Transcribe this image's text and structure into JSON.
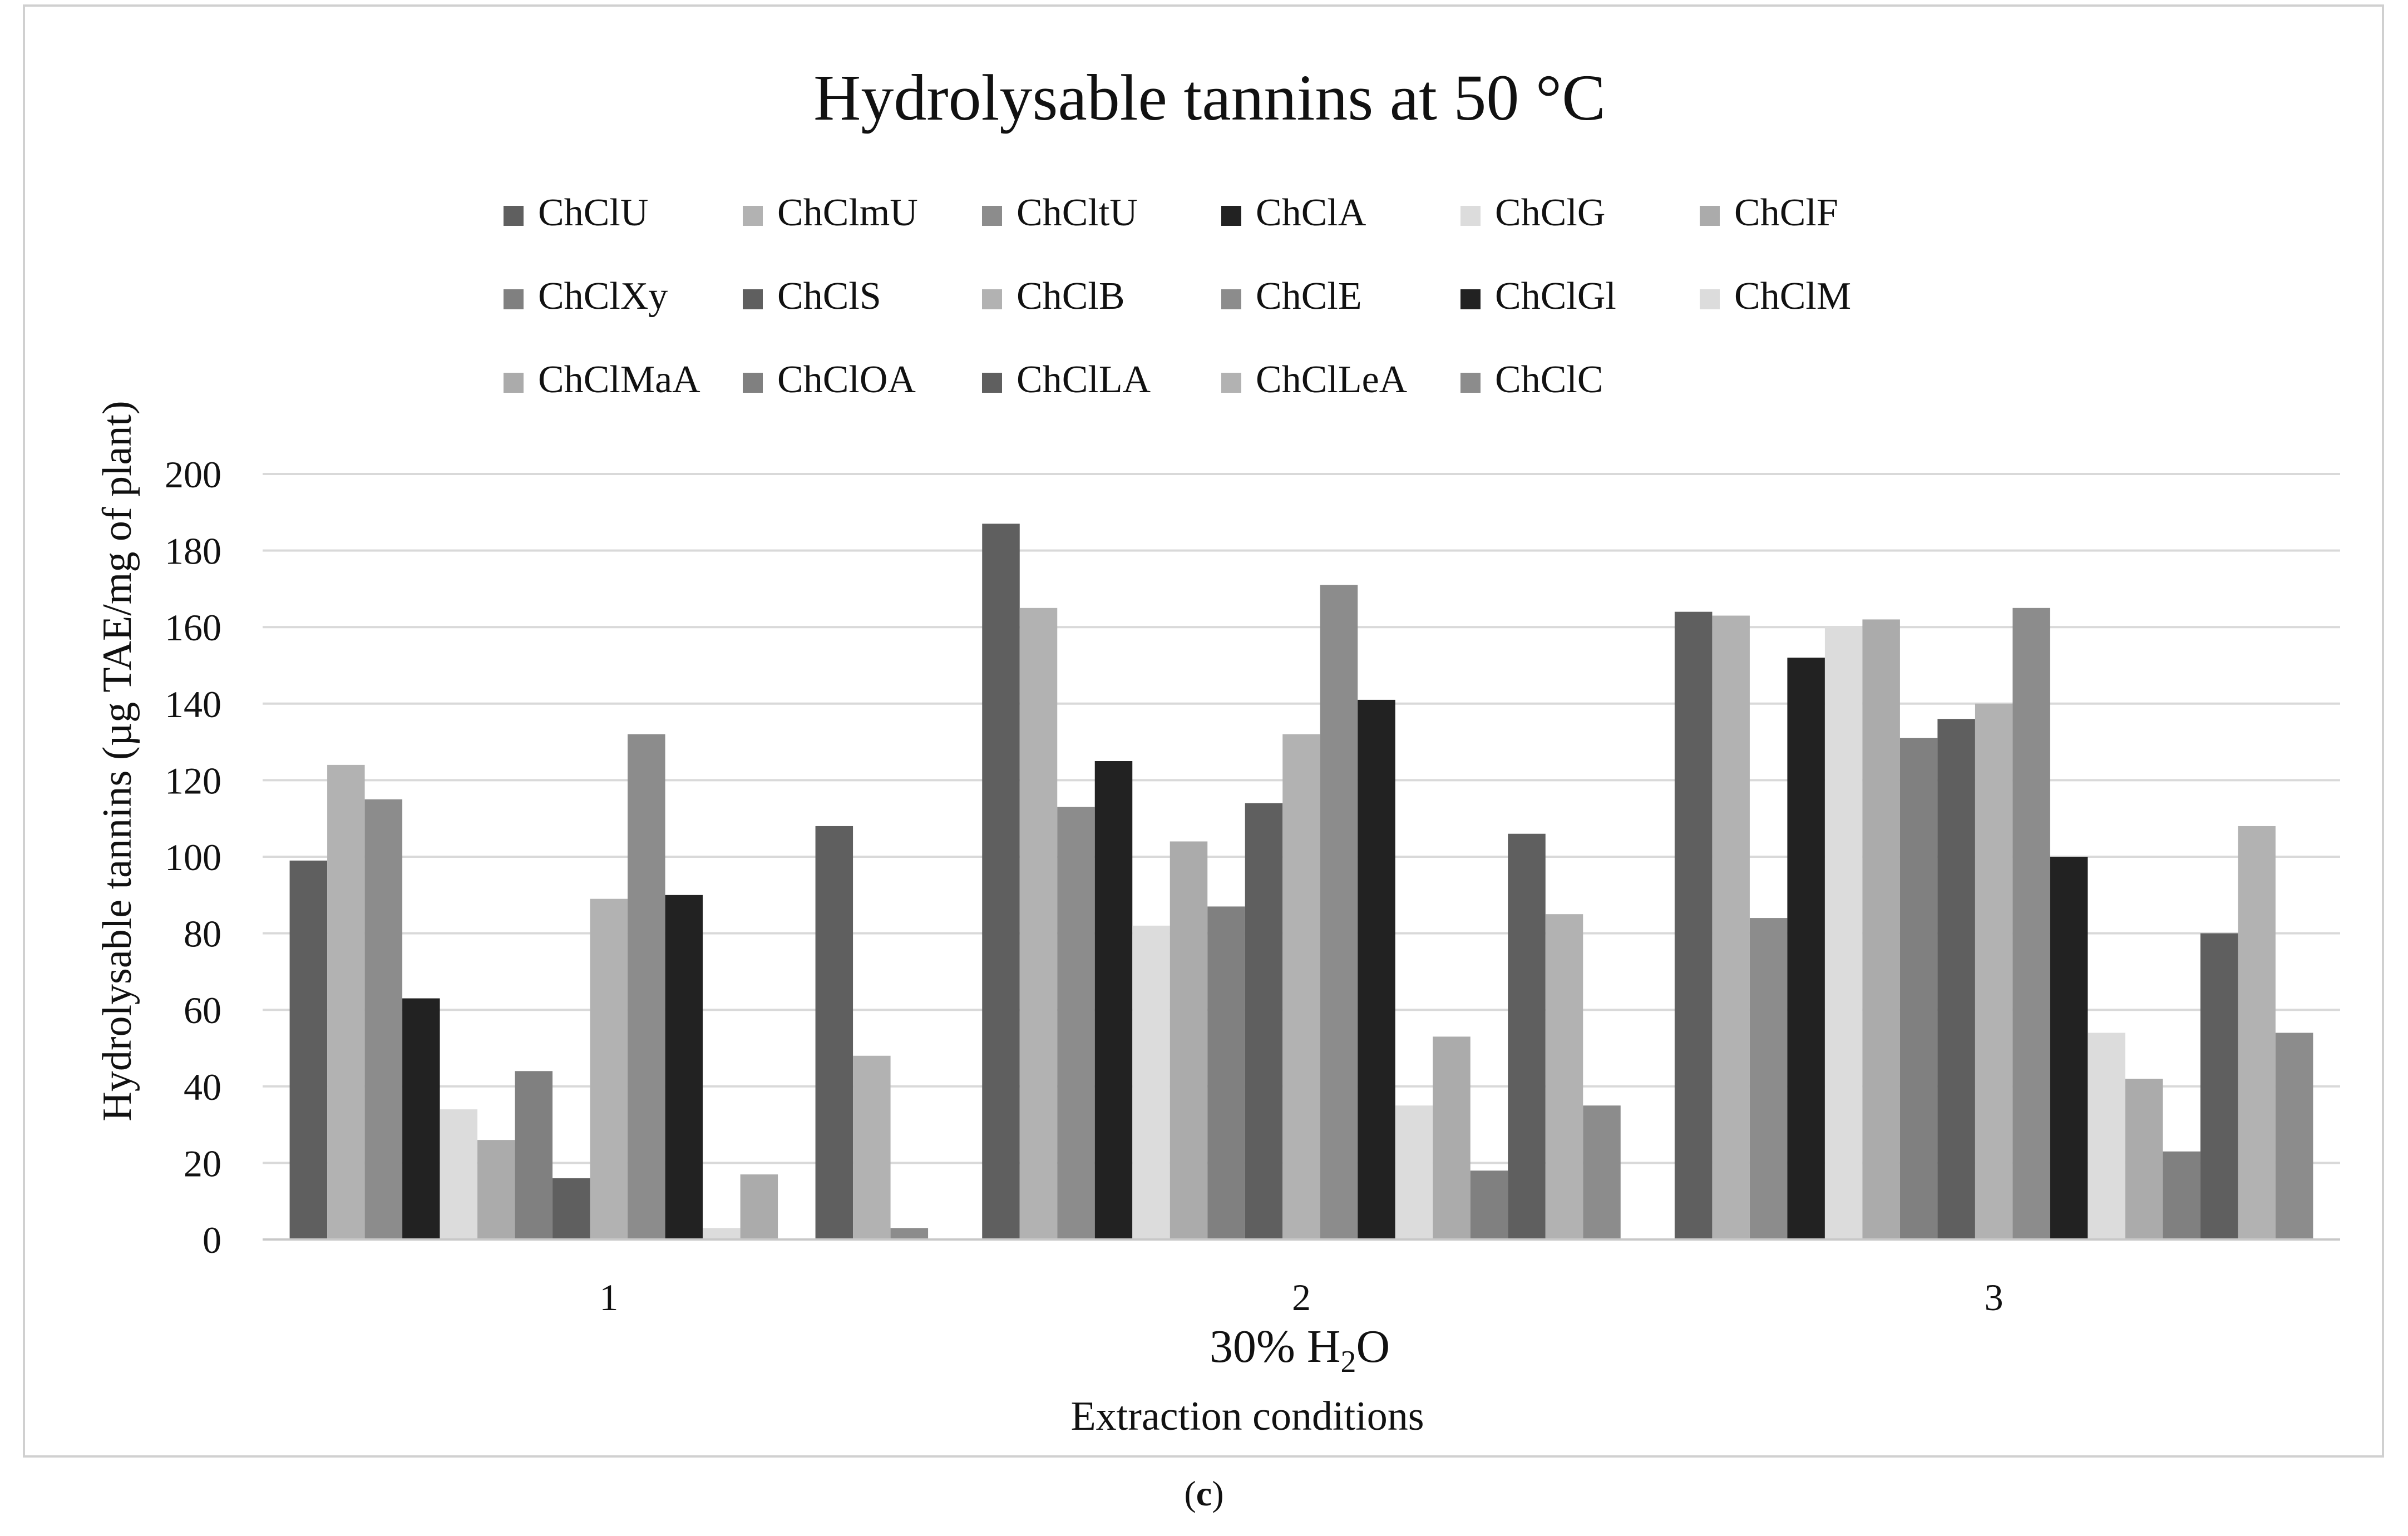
{
  "chart_data": {
    "type": "bar",
    "title": "Hydrolysable tannins at 50 °C",
    "ylabel": "Hydrolysable tannins (µg TAE/mg of plant)",
    "xlabel_line1_prefix": "30% H",
    "xlabel_line1_sub": "2",
    "xlabel_line1_suffix": "O",
    "xlabel": "Extraction conditions",
    "ylim": [
      0,
      200
    ],
    "yticks": [
      0,
      20,
      40,
      60,
      80,
      100,
      120,
      140,
      160,
      180,
      200
    ],
    "grid": true,
    "legend_position": "top",
    "categories": [
      "1",
      "2",
      "3"
    ],
    "series": [
      {
        "name": "ChClU",
        "color": "#5f5f5f",
        "values": [
          99,
          187,
          164
        ]
      },
      {
        "name": "ChClmU",
        "color": "#b2b2b2",
        "values": [
          124,
          165,
          163
        ]
      },
      {
        "name": "ChCltU",
        "color": "#8c8c8c",
        "values": [
          115,
          113,
          84
        ]
      },
      {
        "name": "ChClA",
        "color": "#222222",
        "values": [
          63,
          125,
          152
        ]
      },
      {
        "name": "ChClG",
        "color": "#dcdcdc",
        "values": [
          34,
          82,
          160
        ]
      },
      {
        "name": "ChClF",
        "color": "#ababab",
        "values": [
          26,
          104,
          162
        ]
      },
      {
        "name": "ChClXy",
        "color": "#808080",
        "values": [
          44,
          87,
          131
        ]
      },
      {
        "name": "ChClS",
        "color": "#5f5f5f",
        "values": [
          16,
          114,
          136
        ]
      },
      {
        "name": "ChClB",
        "color": "#b2b2b2",
        "values": [
          89,
          132,
          140
        ]
      },
      {
        "name": "ChClE",
        "color": "#8c8c8c",
        "values": [
          132,
          171,
          165
        ]
      },
      {
        "name": "ChClGl",
        "color": "#222222",
        "values": [
          90,
          141,
          100
        ]
      },
      {
        "name": "ChClM",
        "color": "#dcdcdc",
        "values": [
          3,
          35,
          54
        ]
      },
      {
        "name": "ChClMaA",
        "color": "#ababab",
        "values": [
          17,
          53,
          42
        ]
      },
      {
        "name": "ChClOA",
        "color": "#808080",
        "values": [
          0,
          18,
          23
        ]
      },
      {
        "name": "ChClLA",
        "color": "#5f5f5f",
        "values": [
          108,
          106,
          80
        ]
      },
      {
        "name": "ChClLeA",
        "color": "#b2b2b2",
        "values": [
          48,
          85,
          108
        ]
      },
      {
        "name": "ChClC",
        "color": "#8c8c8c",
        "values": [
          3,
          35,
          54
        ]
      }
    ]
  },
  "panel_label": "c"
}
